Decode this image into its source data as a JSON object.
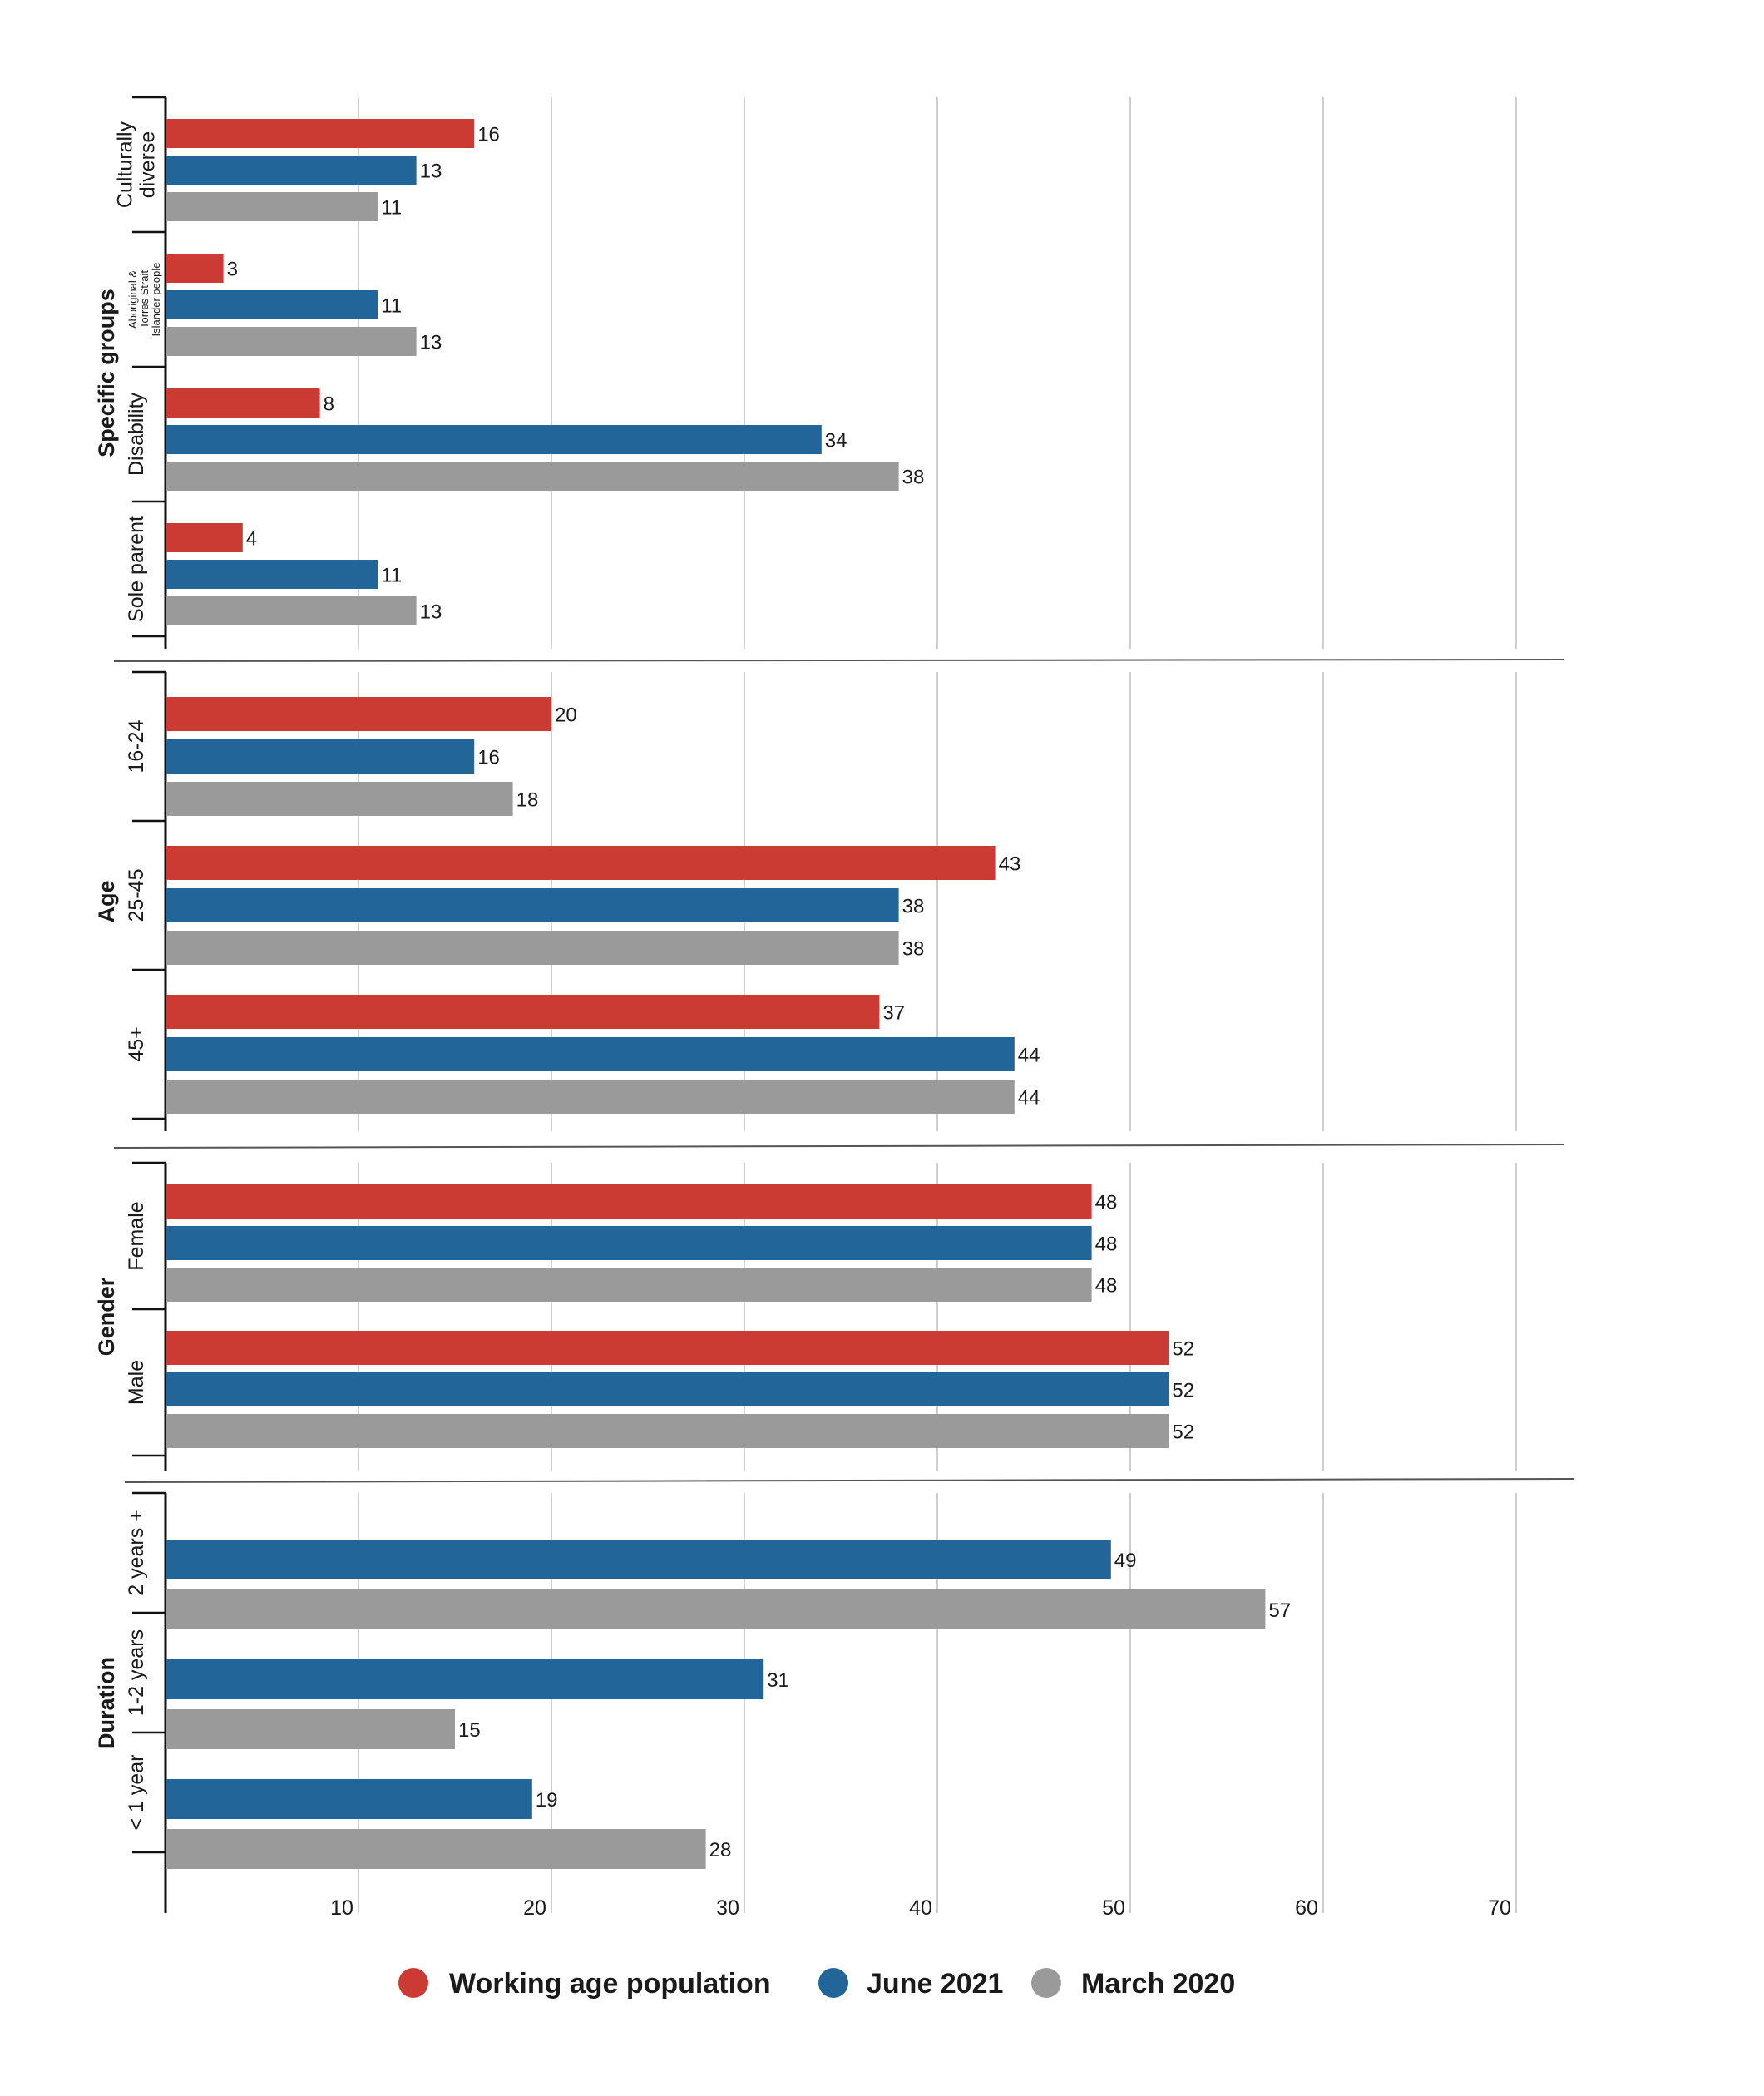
{
  "chart_data": {
    "type": "bar",
    "orientation": "horizontal",
    "xlim": [
      0,
      70
    ],
    "ticks": [
      10,
      20,
      30,
      40,
      50,
      60,
      70
    ],
    "grid": true,
    "legend_position": "bottom",
    "series": [
      {
        "key": "wap",
        "name": "Working age population",
        "color": "#cb3a33"
      },
      {
        "key": "jun",
        "name": "June 2021",
        "color": "#226598"
      },
      {
        "key": "mar",
        "name": "March 2020",
        "color": "#9a9a9a"
      }
    ],
    "groups": [
      {
        "label": "Specific groups",
        "categories": [
          {
            "label": "Culturally\ndiverse",
            "values": {
              "wap": 16,
              "jun": 13,
              "mar": 11
            }
          },
          {
            "label": "Aboriginal &\nTorres Strait\nIslander people",
            "small": true,
            "values": {
              "wap": 3,
              "jun": 11,
              "mar": 13
            }
          },
          {
            "label": "Disability",
            "values": {
              "wap": 8,
              "jun": 34,
              "mar": 38
            }
          },
          {
            "label": "Sole parent",
            "values": {
              "wap": 4,
              "jun": 11,
              "mar": 13
            }
          }
        ]
      },
      {
        "label": "Age",
        "categories": [
          {
            "label": "16-24",
            "values": {
              "wap": 20,
              "jun": 16,
              "mar": 18
            }
          },
          {
            "label": "25-45",
            "values": {
              "wap": 43,
              "jun": 38,
              "mar": 38
            }
          },
          {
            "label": "45+",
            "values": {
              "wap": 37,
              "jun": 44,
              "mar": 44
            }
          }
        ]
      },
      {
        "label": "Gender",
        "categories": [
          {
            "label": "Female",
            "values": {
              "wap": 48,
              "jun": 48,
              "mar": 48
            }
          },
          {
            "label": "Male",
            "values": {
              "wap": 52,
              "jun": 52,
              "mar": 52
            }
          }
        ]
      },
      {
        "label": "Duration",
        "categories": [
          {
            "label": "2 years +",
            "values": {
              "jun": 49,
              "mar": 57
            }
          },
          {
            "label": "1-2 years",
            "values": {
              "jun": 31,
              "mar": 15
            }
          },
          {
            "label": "< 1 year",
            "values": {
              "jun": 19,
              "mar": 28
            }
          }
        ]
      }
    ]
  }
}
